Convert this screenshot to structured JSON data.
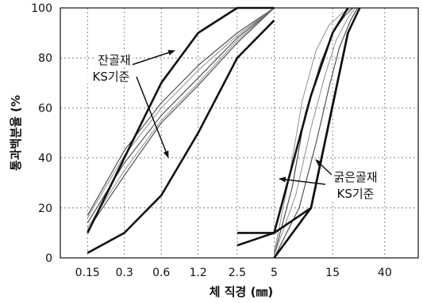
{
  "chart_data": {
    "type": "line",
    "xlabel": "체 직경 (㎜)",
    "ylabel": "통과백분율 (%",
    "x_scale": "log",
    "x_ticks": [
      0.15,
      0.3,
      0.6,
      1.2,
      2.5,
      5,
      15,
      40
    ],
    "x_tick_labels": [
      "0.15",
      "0.3",
      "0.6",
      "1.2",
      "2.5",
      "5",
      "15",
      "40"
    ],
    "xlim": [
      0.09,
      75
    ],
    "ylim": [
      0,
      100
    ],
    "y_ticks": [
      0,
      20,
      40,
      60,
      80,
      100
    ],
    "y_tick_labels": [
      "0",
      "20",
      "40",
      "60",
      "80",
      "100"
    ],
    "grid": true,
    "annotations": [
      {
        "lines": [
          "잔골재",
          "KS기준"
        ]
      },
      {
        "lines": [
          "굵은골재",
          "KS기준"
        ]
      }
    ],
    "series": [
      {
        "group": "fine",
        "role": "standard",
        "x": [
          0.15,
          0.3,
          0.6,
          1.2,
          2.5,
          5
        ],
        "y": [
          2,
          10,
          25,
          50,
          80,
          95
        ]
      },
      {
        "group": "fine",
        "role": "standard",
        "x": [
          0.15,
          0.3,
          0.6,
          1.2,
          2.5,
          5
        ],
        "y": [
          10,
          40,
          70,
          90,
          100,
          100
        ]
      },
      {
        "group": "fine",
        "role": "measured",
        "x": [
          0.15,
          0.3,
          0.6,
          1.2,
          2.5,
          5
        ],
        "y": [
          17,
          43,
          62,
          77,
          90,
          100
        ]
      },
      {
        "group": "fine",
        "role": "measured",
        "x": [
          0.15,
          0.3,
          0.6,
          1.2,
          2.5,
          5
        ],
        "y": [
          16,
          41,
          60,
          75,
          89,
          100
        ]
      },
      {
        "group": "fine",
        "role": "measured",
        "x": [
          0.15,
          0.3,
          0.6,
          1.2,
          2.5,
          5
        ],
        "y": [
          14,
          38,
          57,
          72,
          88,
          100
        ]
      },
      {
        "group": "fine",
        "role": "measured",
        "x": [
          0.15,
          0.3,
          0.6,
          1.2,
          2.5,
          5
        ],
        "y": [
          12,
          35,
          55,
          70,
          87,
          100
        ]
      },
      {
        "group": "fine",
        "role": "measured",
        "x": [
          0.15,
          0.3,
          0.6,
          1.2,
          2.5,
          5
        ],
        "y": [
          11,
          33,
          54,
          69,
          86,
          100
        ]
      },
      {
        "group": "coarse",
        "role": "standard",
        "x": [
          2.5,
          5,
          10,
          20
        ],
        "y": [
          5,
          10,
          20,
          90
        ]
      },
      {
        "group": "coarse",
        "role": "standard",
        "x": [
          2.5,
          5,
          10,
          15,
          20
        ],
        "y": [
          10,
          10,
          65,
          90,
          100
        ]
      },
      {
        "group": "coarse",
        "role": "standard",
        "x": [
          5,
          10,
          20,
          25
        ],
        "y": [
          0,
          20,
          90,
          100
        ]
      },
      {
        "group": "coarse",
        "role": "measured",
        "x": [
          5,
          6.5,
          8.5,
          11,
          14,
          18,
          22
        ],
        "y": [
          2,
          30,
          63,
          83,
          93,
          98,
          100
        ]
      },
      {
        "group": "coarse",
        "role": "measured",
        "x": [
          5,
          7,
          9,
          12,
          15,
          19,
          22
        ],
        "y": [
          1,
          28,
          58,
          78,
          90,
          97,
          100
        ]
      },
      {
        "group": "coarse",
        "role": "measured",
        "x": [
          5,
          7.5,
          10,
          13,
          16,
          20,
          23
        ],
        "y": [
          1,
          25,
          52,
          73,
          87,
          96,
          100
        ]
      },
      {
        "group": "coarse",
        "role": "measured",
        "x": [
          5,
          8,
          11,
          14,
          17,
          21,
          24
        ],
        "y": [
          0,
          20,
          46,
          68,
          84,
          95,
          100
        ]
      }
    ],
    "colors": {
      "standard": "#111111",
      "measured_dark": "#444444",
      "measured_light": "#999999",
      "grid": "#666666",
      "axis": "#111111"
    }
  }
}
